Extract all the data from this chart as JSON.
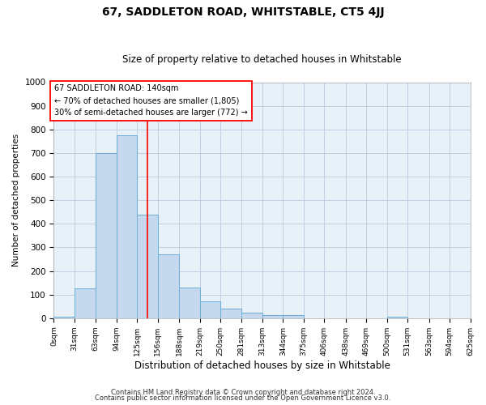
{
  "title": "67, SADDLETON ROAD, WHITSTABLE, CT5 4JJ",
  "subtitle": "Size of property relative to detached houses in Whitstable",
  "xlabel": "Distribution of detached houses by size in Whitstable",
  "ylabel": "Number of detached properties",
  "footnote1": "Contains HM Land Registry data © Crown copyright and database right 2024.",
  "footnote2": "Contains public sector information licensed under the Open Government Licence v3.0.",
  "bar_edges": [
    0,
    31,
    63,
    94,
    125,
    156,
    188,
    219,
    250,
    281,
    313,
    344,
    375,
    406,
    438,
    469,
    500,
    531,
    563,
    594,
    625
  ],
  "bar_heights": [
    8,
    125,
    700,
    775,
    440,
    270,
    130,
    70,
    40,
    25,
    12,
    12,
    0,
    0,
    0,
    0,
    8,
    0,
    0,
    0
  ],
  "bar_color": "#c5d8ed",
  "bar_edge_color": "#6aaed6",
  "red_line_x": 140,
  "ylim": [
    0,
    1000
  ],
  "yticks": [
    0,
    100,
    200,
    300,
    400,
    500,
    600,
    700,
    800,
    900,
    1000
  ],
  "annotation_box_text": "67 SADDLETON ROAD: 140sqm\n← 70% of detached houses are smaller (1,805)\n30% of semi-detached houses are larger (772) →",
  "background_color": "#e8f0f8",
  "grid_color": "#b8cce0",
  "title_fontsize": 10,
  "subtitle_fontsize": 8.5,
  "xlabel_fontsize": 8.5,
  "ylabel_fontsize": 7.5,
  "footnote_fontsize": 6
}
